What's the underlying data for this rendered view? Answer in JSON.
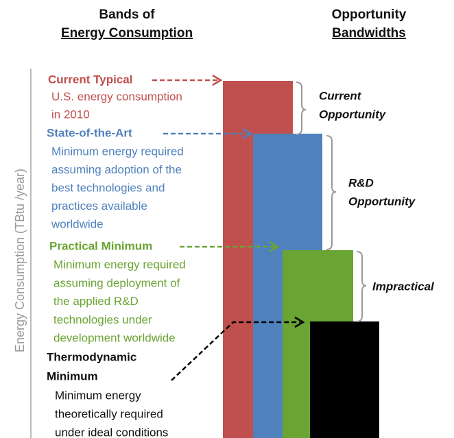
{
  "header": {
    "left": [
      "Bands of",
      "Energy Consumption"
    ],
    "right": [
      "Opportunity",
      "Bandwidths"
    ]
  },
  "axis_label": "Energy Consumption  (TBtu /year)",
  "bands": [
    {
      "title": "Current Typical",
      "lines": [
        "U.S. energy consumption",
        "in 2010"
      ]
    },
    {
      "title": "State-of-the-Art",
      "lines": [
        "Minimum energy required",
        "assuming adoption of the",
        "best technologies and",
        "practices available",
        "worldwide"
      ]
    },
    {
      "title": "Practical  Minimum",
      "lines": [
        "Minimum energy required",
        "assuming deployment of",
        "the applied R&D",
        "technologies under",
        "development worldwide"
      ]
    },
    {
      "title": [
        "Thermodynamic",
        "Minimum"
      ],
      "lines": [
        "Minimum energy",
        "theoretically required",
        "under ideal conditions"
      ]
    }
  ],
  "bandwidths": [
    [
      "Current",
      "Opportunity"
    ],
    [
      "R&D",
      "Opportunity"
    ],
    [
      "Impractical"
    ]
  ]
}
